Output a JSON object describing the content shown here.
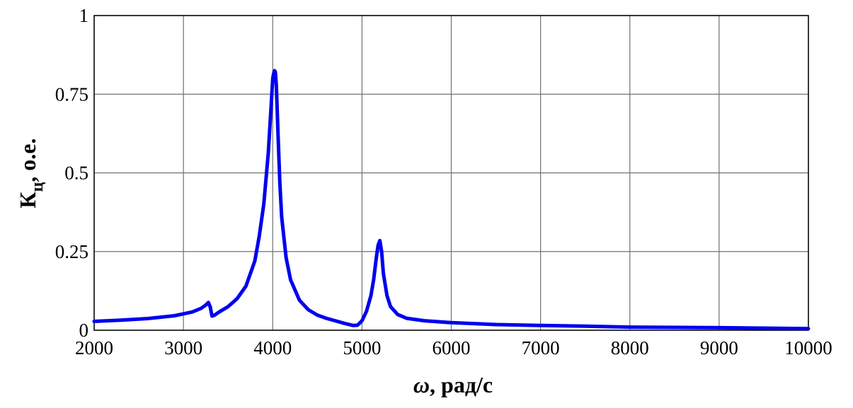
{
  "chart_data": {
    "type": "line",
    "xlabel": {
      "symbol": "ω",
      "suffix": ", рад/с"
    },
    "ylabel": {
      "main": "К",
      "sub": "ц",
      "suffix": ", о.е."
    },
    "xlim": [
      2000,
      10000
    ],
    "ylim": [
      0,
      1
    ],
    "x_ticks": [
      "2000",
      "3000",
      "4000",
      "5000",
      "6000",
      "7000",
      "8000",
      "9000",
      "10000"
    ],
    "y_ticks": [
      "0",
      "0.25",
      "0.5",
      "0.75",
      "1"
    ],
    "grid": true,
    "series": [
      {
        "color": "#0000ee",
        "x": [
          2000,
          2300,
          2600,
          2900,
          3100,
          3200,
          3250,
          3280,
          3300,
          3320,
          3350,
          3400,
          3500,
          3600,
          3700,
          3800,
          3850,
          3900,
          3950,
          3980,
          4000,
          4010,
          4020,
          4030,
          4040,
          4050,
          4060,
          4080,
          4100,
          4150,
          4200,
          4300,
          4400,
          4500,
          4600,
          4700,
          4800,
          4900,
          4950,
          5000,
          5050,
          5100,
          5130,
          5160,
          5180,
          5200,
          5220,
          5240,
          5280,
          5320,
          5400,
          5500,
          5700,
          6000,
          6500,
          7000,
          7500,
          8000,
          9000,
          10000
        ],
        "y": [
          0.028,
          0.032,
          0.037,
          0.046,
          0.058,
          0.07,
          0.08,
          0.088,
          0.074,
          0.045,
          0.048,
          0.058,
          0.075,
          0.1,
          0.14,
          0.22,
          0.3,
          0.4,
          0.56,
          0.7,
          0.8,
          0.815,
          0.825,
          0.82,
          0.78,
          0.7,
          0.62,
          0.47,
          0.36,
          0.23,
          0.16,
          0.095,
          0.065,
          0.048,
          0.038,
          0.03,
          0.022,
          0.015,
          0.016,
          0.03,
          0.06,
          0.11,
          0.16,
          0.23,
          0.27,
          0.285,
          0.25,
          0.18,
          0.11,
          0.075,
          0.05,
          0.038,
          0.03,
          0.024,
          0.018,
          0.015,
          0.013,
          0.01,
          0.008,
          0.005
        ]
      }
    ]
  }
}
